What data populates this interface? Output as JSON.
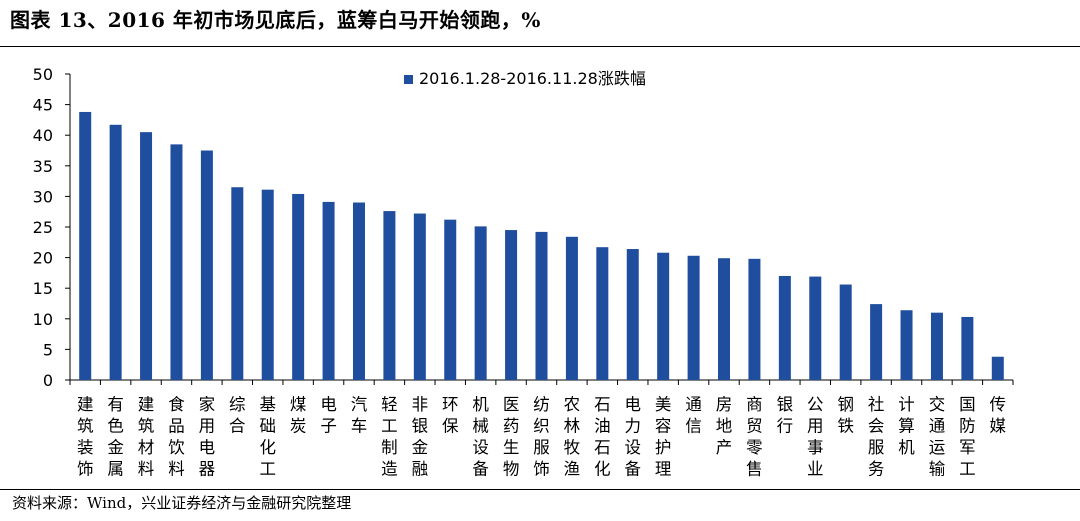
{
  "header": {
    "title": "图表 13、2016 年初市场见底后，蓝筹白马开始领跑，%"
  },
  "footer": {
    "source": "资料来源：Wind，兴业证券经济与金融研究院整理"
  },
  "colors": {
    "bar": "#1f4e9e",
    "axis": "#000000"
  },
  "chart_data": {
    "type": "bar",
    "title": "",
    "xlabel": "",
    "ylabel": "",
    "ylim": [
      0,
      50
    ],
    "yticks": [
      "0",
      "5",
      "10",
      "15",
      "20",
      "25",
      "30",
      "35",
      "40",
      "45",
      "50"
    ],
    "grid": false,
    "legend_position": "top-center",
    "categories": [
      "建筑装饰",
      "有色金属",
      "建筑材料",
      "食品饮料",
      "家用电器",
      "综合",
      "基础化工",
      "煤炭",
      "电子",
      "汽车",
      "轻工制造",
      "非银金融",
      "环保",
      "机械设备",
      "医药生物",
      "纺织服饰",
      "农林牧渔",
      "石油石化",
      "电力设备",
      "美容护理",
      "通信",
      "房地产",
      "商贸零售",
      "银行",
      "公用事业",
      "钢铁",
      "社会服务",
      "计算机",
      "交通运输",
      "国防军工",
      "传媒"
    ],
    "series": [
      {
        "name": "2016.1.28-2016.11.28涨跌幅",
        "values": [
          43.8,
          41.7,
          40.5,
          38.5,
          37.5,
          31.5,
          31.1,
          30.4,
          29.1,
          29.0,
          27.6,
          27.2,
          26.2,
          25.1,
          24.5,
          24.2,
          23.4,
          21.7,
          21.4,
          20.8,
          20.3,
          19.9,
          19.8,
          17.0,
          16.9,
          15.6,
          12.4,
          11.4,
          11.0,
          10.3,
          3.8
        ]
      }
    ]
  }
}
